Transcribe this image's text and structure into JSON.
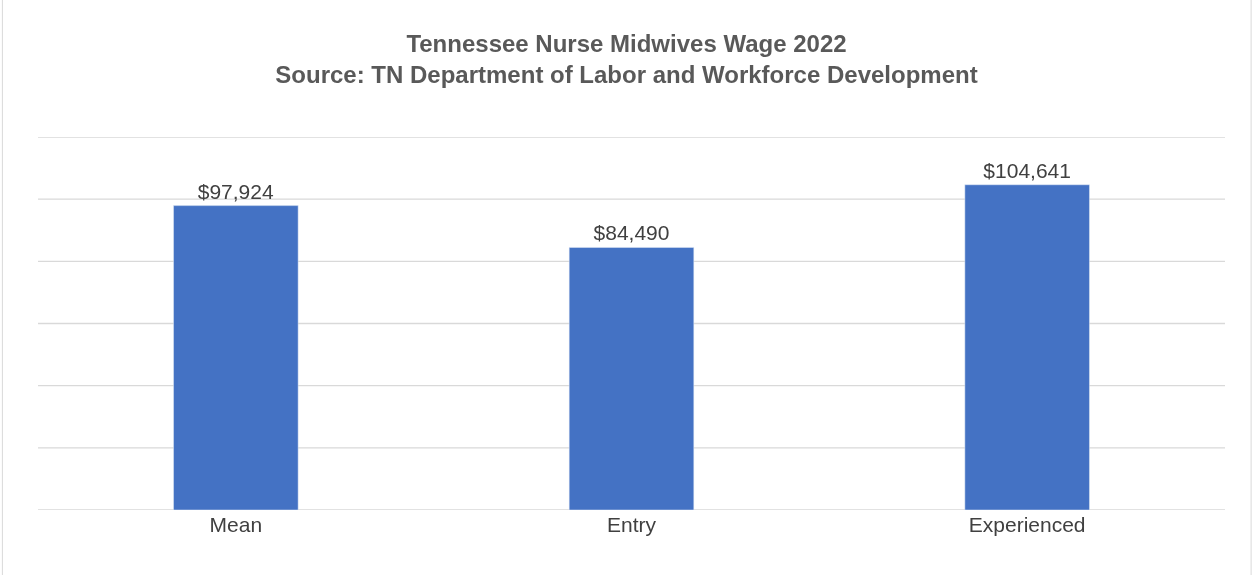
{
  "chart_data": {
    "type": "bar",
    "title": "Tennessee Nurse Midwives Wage 2022\nSource: TN Department of Labor and Workforce Development",
    "categories": [
      "Mean",
      "Entry",
      "Experienced"
    ],
    "values": [
      97924,
      84490,
      104641
    ],
    "value_labels": [
      "$97,924",
      "$84,490",
      "$104,641"
    ],
    "color": "#4472c4",
    "ylim": [
      0,
      120000
    ],
    "yticks": [
      {
        "value": 0,
        "label": null
      },
      {
        "value": 20000,
        "label": null
      },
      {
        "value": 40000,
        "label": null
      },
      {
        "value": 60000,
        "label": null
      },
      {
        "value": 80000,
        "label": null
      },
      {
        "value": 100000,
        "label": null
      },
      {
        "value": 120000,
        "label": null
      }
    ],
    "grid": "y",
    "legend": false,
    "tick_labels": "x"
  }
}
